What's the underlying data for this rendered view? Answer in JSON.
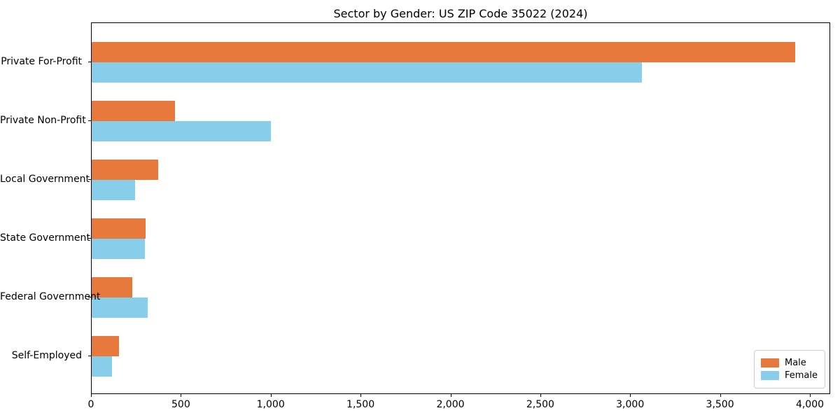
{
  "chart_data": {
    "type": "bar",
    "orientation": "horizontal",
    "title": "Sector by Gender: US ZIP Code 35022 (2024)",
    "categories": [
      "Private For-Profit",
      "Private Non-Profit",
      "Local Government",
      "State Government",
      "Federal Government",
      "Self-Employed"
    ],
    "series": [
      {
        "name": "Male",
        "color": "#e8793d",
        "values": [
          3915,
          465,
          370,
          298,
          224,
          150
        ]
      },
      {
        "name": "Female",
        "color": "#87ceeb",
        "values": [
          3060,
          995,
          240,
          296,
          312,
          114
        ]
      }
    ],
    "xlabel": "",
    "ylabel": "",
    "xlim": [
      0,
      4113
    ],
    "xticks": [
      0,
      500,
      1000,
      1500,
      2000,
      2500,
      3000,
      3500,
      4000
    ],
    "xtick_labels": [
      "0",
      "500",
      "1,000",
      "1,500",
      "2,000",
      "2,500",
      "3,000",
      "3,500",
      "4,000"
    ],
    "grid": false,
    "legend": {
      "position": "lower right"
    }
  },
  "colors": {
    "background": "#ffffff",
    "axis": "#000000",
    "legend_border": "#cccccc",
    "male": "#e8793d",
    "female": "#87ceeb"
  }
}
